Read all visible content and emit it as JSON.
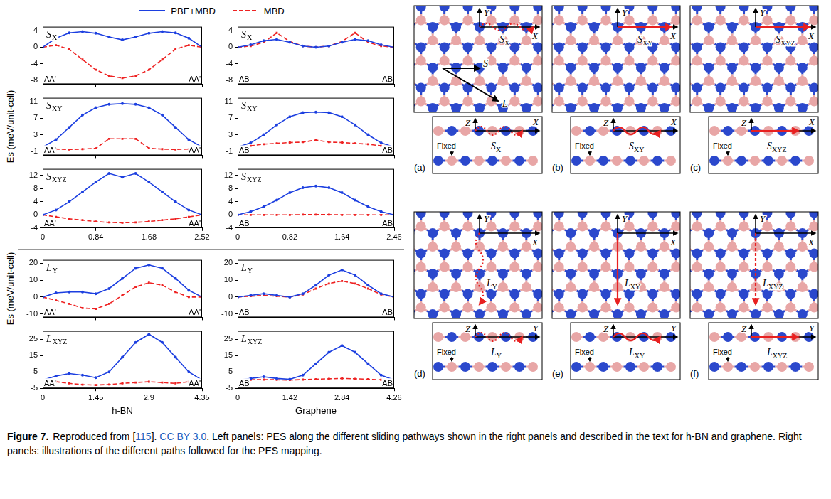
{
  "chart_data": [
    {
      "type": "line",
      "title": "SX",
      "legend": "top",
      "grid": false,
      "tick_labels": "y",
      "x": [
        0,
        0.21,
        0.42,
        0.63,
        0.84,
        1.05,
        1.26,
        1.47,
        1.68,
        1.89,
        2.1,
        2.31,
        2.52
      ],
      "series": [
        {
          "name": "PBE+MBD",
          "color": "#1c3fe0",
          "marker": "circle",
          "line_style": "solid",
          "values": [
            0,
            2.2,
            3.5,
            3.8,
            3.4,
            2.5,
            1.8,
            2.5,
            3.4,
            3.8,
            3.5,
            2.2,
            0
          ]
        },
        {
          "name": "MBD",
          "color": "#ee2222",
          "marker": "square",
          "line_style": "dashed",
          "values": [
            0,
            0.5,
            -0.5,
            -3,
            -5.5,
            -7,
            -7.5,
            -7,
            -5.5,
            -3,
            -0.5,
            0.5,
            0
          ]
        }
      ],
      "xlim": [
        0,
        2.52
      ],
      "xticks": [
        0,
        0.84,
        1.68,
        2.52
      ],
      "ylim": [
        -9,
        5
      ],
      "yticks": [
        -8,
        -4,
        0,
        4
      ],
      "annotations": [
        {
          "text": "AA'",
          "x": 0
        },
        {
          "text": "AA'",
          "x": 2.52
        }
      ]
    },
    {
      "type": "line",
      "title": "SX",
      "grid": false,
      "tick_labels": "y",
      "x": [
        0,
        0.205,
        0.41,
        0.615,
        0.82,
        1.025,
        1.23,
        1.435,
        1.64,
        1.845,
        2.05,
        2.255,
        2.46
      ],
      "series": [
        {
          "name": "PBE+MBD",
          "color": "#1c3fe0",
          "marker": "circle",
          "line_style": "solid",
          "values": [
            0,
            0.6,
            1.6,
            1.9,
            1.2,
            0.3,
            0,
            0.3,
            1.2,
            1.9,
            1.6,
            0.6,
            0
          ]
        },
        {
          "name": "MBD",
          "color": "#ee2222",
          "marker": "square",
          "line_style": "dashed",
          "values": [
            0,
            0.3,
            1.2,
            3.5,
            1.4,
            0.3,
            0,
            0.3,
            1.4,
            3.5,
            1.2,
            0.3,
            0
          ]
        }
      ],
      "xlim": [
        0,
        2.46
      ],
      "xticks": [
        0,
        0.82,
        1.64,
        2.46
      ],
      "ylim": [
        -9,
        5
      ],
      "yticks": [
        -8,
        -4,
        0,
        4
      ],
      "annotations": [
        {
          "text": "AB",
          "x": 0
        },
        {
          "text": "AB",
          "x": 2.46
        }
      ]
    },
    {
      "type": "line",
      "title": "SXY",
      "grid": false,
      "tick_labels": "y",
      "ylabel": "Es (meV/unit-cell)",
      "x": [
        0,
        0.21,
        0.42,
        0.63,
        0.84,
        1.05,
        1.26,
        1.47,
        1.68,
        1.89,
        2.1,
        2.31,
        2.52
      ],
      "series": [
        {
          "name": "PBE+MBD",
          "color": "#1c3fe0",
          "marker": "circle",
          "line_style": "solid",
          "values": [
            0,
            1.8,
            4.8,
            7.8,
            9.6,
            10.4,
            10.6,
            10.4,
            9.6,
            7.8,
            4.8,
            1.8,
            0
          ]
        },
        {
          "name": "MBD",
          "color": "#ee2222",
          "marker": "square",
          "line_style": "dashed",
          "values": [
            0,
            -0.5,
            -0.6,
            -0.5,
            -0.3,
            2,
            2,
            2,
            -0.3,
            -0.5,
            -0.6,
            -0.5,
            0
          ]
        }
      ],
      "xlim": [
        0,
        2.52
      ],
      "xticks": [
        0,
        0.84,
        1.68,
        2.52
      ],
      "ylim": [
        -2,
        12
      ],
      "yticks": [
        -1,
        3,
        7,
        11
      ],
      "annotations": [
        {
          "text": "AA'",
          "x": 0
        },
        {
          "text": "AA'",
          "x": 2.52
        }
      ]
    },
    {
      "type": "line",
      "title": "SXY",
      "grid": false,
      "tick_labels": "y",
      "x": [
        0,
        0.205,
        0.41,
        0.615,
        0.82,
        1.025,
        1.23,
        1.435,
        1.64,
        1.845,
        2.05,
        2.255,
        2.46
      ],
      "series": [
        {
          "name": "PBE+MBD",
          "color": "#1c3fe0",
          "marker": "circle",
          "line_style": "solid",
          "values": [
            0,
            1,
            3,
            5.4,
            7.4,
            8.4,
            8.5,
            8.4,
            7.4,
            5.4,
            3,
            1,
            0
          ]
        },
        {
          "name": "MBD",
          "color": "#ee2222",
          "marker": "square",
          "line_style": "dashed",
          "values": [
            0,
            0.3,
            0.7,
            0.9,
            1.1,
            1.2,
            1.7,
            1.2,
            1.1,
            0.9,
            0.7,
            0.3,
            0
          ]
        }
      ],
      "xlim": [
        0,
        2.46
      ],
      "xticks": [
        0,
        0.82,
        1.64,
        2.46
      ],
      "ylim": [
        -2,
        12
      ],
      "yticks": [
        -1,
        3,
        7,
        11
      ],
      "annotations": [
        {
          "text": "AB",
          "x": 0
        },
        {
          "text": "AB",
          "x": 2.46
        }
      ]
    },
    {
      "type": "line",
      "title": "SXYZ",
      "grid": false,
      "x": [
        0,
        0.21,
        0.42,
        0.63,
        0.84,
        1.05,
        1.26,
        1.47,
        1.68,
        1.89,
        2.1,
        2.31,
        2.52
      ],
      "series": [
        {
          "name": "PBE+MBD",
          "color": "#1c3fe0",
          "marker": "circle",
          "line_style": "solid",
          "values": [
            0,
            1.5,
            4,
            7,
            10,
            12.6,
            11.5,
            12.6,
            10,
            7,
            4,
            1.5,
            0
          ]
        },
        {
          "name": "MBD",
          "color": "#ee2222",
          "marker": "square",
          "line_style": "dashed",
          "values": [
            0,
            -0.6,
            -1.2,
            -1.6,
            -2,
            -2.3,
            -2.4,
            -2.3,
            -2,
            -1.6,
            -1.2,
            -0.6,
            0
          ]
        }
      ],
      "xlim": [
        0,
        2.52
      ],
      "xticks": [
        0,
        0.84,
        1.68,
        2.52
      ],
      "ylim": [
        -4,
        14
      ],
      "yticks": [
        -4,
        0,
        4,
        8,
        12
      ],
      "annotations": [
        {
          "text": "AA'",
          "x": 0
        },
        {
          "text": "AA'",
          "x": 2.52
        }
      ]
    },
    {
      "type": "line",
      "title": "SXYZ",
      "grid": false,
      "x": [
        0,
        0.205,
        0.41,
        0.615,
        0.82,
        1.025,
        1.23,
        1.435,
        1.64,
        1.845,
        2.05,
        2.255,
        2.46
      ],
      "series": [
        {
          "name": "PBE+MBD",
          "color": "#1c3fe0",
          "marker": "circle",
          "line_style": "solid",
          "values": [
            0,
            1,
            2.5,
            4.5,
            6.8,
            8.3,
            8.8,
            8.3,
            6.8,
            4.5,
            2.5,
            1,
            0
          ]
        },
        {
          "name": "MBD",
          "color": "#ee2222",
          "marker": "square",
          "line_style": "dashed",
          "values": [
            0,
            0,
            0,
            0,
            0,
            0.1,
            0.1,
            0.1,
            0,
            0,
            0,
            0,
            0
          ]
        }
      ],
      "xlim": [
        0,
        2.46
      ],
      "xticks": [
        0,
        0.82,
        1.64,
        2.46
      ],
      "ylim": [
        -4,
        14
      ],
      "yticks": [
        -4,
        0,
        4,
        8,
        12
      ],
      "annotations": [
        {
          "text": "AB",
          "x": 0
        },
        {
          "text": "AB",
          "x": 2.46
        }
      ]
    },
    {
      "type": "line",
      "title": "LY",
      "grid": false,
      "tick_labels": "y",
      "ylabel": "Es (meV/unit-cell)",
      "x": [
        0,
        0.3625,
        0.725,
        1.0875,
        1.45,
        1.8125,
        2.175,
        2.5375,
        2.9,
        3.2625,
        3.625,
        3.9875,
        4.35
      ],
      "series": [
        {
          "name": "PBE+MBD",
          "color": "#1c3fe0",
          "marker": "circle",
          "line_style": "solid",
          "values": [
            0,
            2.5,
            3,
            3,
            2,
            5,
            11,
            17,
            19,
            17,
            11,
            4,
            0
          ]
        },
        {
          "name": "MBD",
          "color": "#ee2222",
          "marker": "square",
          "line_style": "dashed",
          "values": [
            0,
            -2,
            -4,
            -6.5,
            -7,
            -4,
            1,
            6,
            8.5,
            7,
            3,
            0,
            0
          ]
        }
      ],
      "xlim": [
        0,
        4.35
      ],
      "xticks": [
        0,
        1.45,
        2.9,
        4.35
      ],
      "ylim": [
        -12,
        22
      ],
      "yticks": [
        -10,
        0,
        10,
        20
      ],
      "annotations": [
        {
          "text": "AA'",
          "x": 0
        },
        {
          "text": "AA'",
          "x": 4.35
        }
      ]
    },
    {
      "type": "line",
      "title": "LY",
      "grid": false,
      "tick_labels": "y",
      "x": [
        0,
        0.355,
        0.71,
        1.065,
        1.42,
        1.775,
        2.13,
        2.485,
        2.84,
        3.195,
        3.55,
        3.905,
        4.26
      ],
      "series": [
        {
          "name": "PBE+MBD",
          "color": "#1c3fe0",
          "marker": "circle",
          "line_style": "solid",
          "values": [
            0,
            1,
            2,
            1,
            0,
            2,
            7,
            13,
            16,
            13,
            7,
            2,
            0
          ]
        },
        {
          "name": "MBD",
          "color": "#ee2222",
          "marker": "square",
          "line_style": "dashed",
          "values": [
            0,
            0.5,
            1,
            0.5,
            0,
            1.5,
            5,
            8,
            9.5,
            8,
            5,
            1.5,
            0
          ]
        }
      ],
      "xlim": [
        0,
        4.26
      ],
      "xticks": [
        0,
        1.42,
        2.84,
        4.26
      ],
      "ylim": [
        -12,
        22
      ],
      "yticks": [
        -10,
        0,
        10,
        20
      ],
      "annotations": [
        {
          "text": "AB",
          "x": 0
        },
        {
          "text": "AB",
          "x": 4.26
        }
      ]
    },
    {
      "type": "line",
      "title": "LXYZ",
      "grid": false,
      "xlabel": "h-BN",
      "x": [
        0,
        0.3625,
        0.725,
        1.0875,
        1.45,
        1.8125,
        2.175,
        2.5375,
        2.9,
        3.2625,
        3.625,
        3.9875,
        4.35
      ],
      "series": [
        {
          "name": "PBE+MBD",
          "color": "#1c3fe0",
          "marker": "circle",
          "line_style": "solid",
          "values": [
            0,
            2.5,
            4,
            3,
            1.5,
            5,
            14,
            23,
            28,
            23,
            14,
            5,
            0
          ]
        },
        {
          "name": "MBD",
          "color": "#ee2222",
          "marker": "square",
          "line_style": "dashed",
          "values": [
            0,
            -1,
            -2,
            -2.8,
            -3,
            -2.7,
            -2,
            -1.5,
            -1,
            -1.5,
            -2,
            -1,
            0
          ]
        }
      ],
      "xlim": [
        0,
        4.35
      ],
      "xticks": [
        0,
        1.45,
        2.9,
        4.35
      ],
      "ylim": [
        -5,
        30
      ],
      "yticks": [
        -5,
        5,
        15,
        25
      ],
      "annotations": [
        {
          "text": "AA'",
          "x": 0
        },
        {
          "text": "AA'",
          "x": 4.35
        }
      ]
    },
    {
      "type": "line",
      "title": "LXYZ",
      "grid": false,
      "xlabel": "Graphene",
      "x": [
        0,
        0.355,
        0.71,
        1.065,
        1.42,
        1.775,
        2.13,
        2.485,
        2.84,
        3.195,
        3.55,
        3.905,
        4.26
      ],
      "series": [
        {
          "name": "PBE+MBD",
          "color": "#1c3fe0",
          "marker": "circle",
          "line_style": "solid",
          "values": [
            0,
            1,
            2,
            1,
            0.5,
            3,
            10,
            17,
            21,
            17,
            10,
            3,
            0
          ]
        },
        {
          "name": "MBD",
          "color": "#ee2222",
          "marker": "square",
          "line_style": "dashed",
          "values": [
            0,
            0.2,
            0.3,
            0.2,
            0,
            0.3,
            0.5,
            0.8,
            1,
            0.8,
            0.5,
            0.2,
            0
          ]
        }
      ],
      "xlim": [
        0,
        4.26
      ],
      "xticks": [
        0,
        1.42,
        2.84,
        4.26
      ],
      "ylim": [
        -5,
        30
      ],
      "yticks": [
        -5,
        5,
        15,
        25
      ],
      "annotations": [
        {
          "text": "AB",
          "x": 0
        },
        {
          "text": "AB",
          "x": 4.26
        }
      ]
    }
  ],
  "diagram": {
    "panels": [
      {
        "label": "(a)",
        "path": "SX",
        "top_axes": [
          "X",
          "Y"
        ],
        "side_axes": [
          "X",
          "Z"
        ],
        "fixed": "Fixed",
        "vectors": [
          "S",
          "L"
        ]
      },
      {
        "label": "(b)",
        "path": "SXY",
        "top_axes": [
          "X",
          "Y"
        ],
        "side_axes": [
          "X",
          "Z"
        ],
        "fixed": "Fixed"
      },
      {
        "label": "(c)",
        "path": "SXYZ",
        "top_axes": [
          "X",
          "Y"
        ],
        "side_axes": [
          "X",
          "Z"
        ],
        "fixed": "Fixed"
      },
      {
        "label": "(d)",
        "path": "LY",
        "top_axes": [
          "X",
          "Y"
        ],
        "side_axes": [
          "Y",
          "Z"
        ],
        "fixed": "Fixed"
      },
      {
        "label": "(e)",
        "path": "LXY",
        "top_axes": [
          "X",
          "Y"
        ],
        "side_axes": [
          "Y",
          "Z"
        ],
        "fixed": "Fixed"
      },
      {
        "label": "(f)",
        "path": "LXYZ",
        "top_axes": [
          "X",
          "Y"
        ],
        "side_axes": [
          "Y",
          "Z"
        ],
        "fixed": "Fixed"
      }
    ]
  },
  "caption": {
    "label": "Figure 7.",
    "parts": [
      "Reproduced from [",
      "115",
      "]. ",
      "CC BY 3.0",
      ". Left panels: PES along the different sliding pathways shown in the right panels and described in the text for h-BN and graphene. Right panels: illustrations of the different paths followed for the PES mapping."
    ]
  }
}
